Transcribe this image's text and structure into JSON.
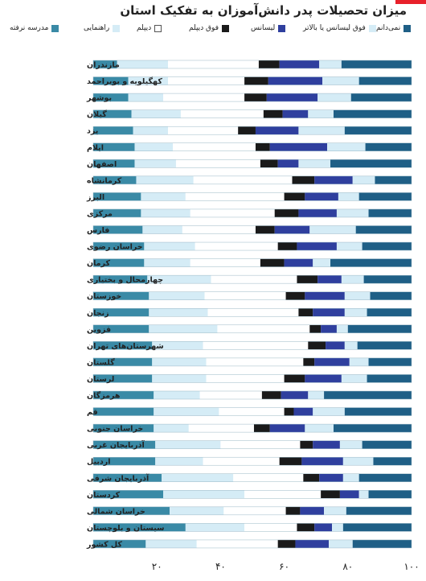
{
  "title": "میزان تحصیلات پدر دانش‌آموزان به تفکیک استان",
  "colors": {
    "accent": "#e8202a",
    "levels": [
      "#1f5f86",
      "#d5ecf6",
      "#2f3f9e",
      "#1a1a1a",
      "#ffffff",
      "#d5ecf6",
      "#3a8aa6"
    ]
  },
  "legend": [
    {
      "label": "نمی‌دانم",
      "color": "#1f5f86"
    },
    {
      "label": "فوق لیسانس یا بالاتر",
      "color": "#d5ecf6"
    },
    {
      "label": "لیسانس",
      "color": "#2f3f9e"
    },
    {
      "label": "فوق دیپلم",
      "color": "#1a1a1a"
    },
    {
      "label": "دیپلم",
      "color": "#ffffff"
    },
    {
      "label": "راهنمایی",
      "color": "#d5ecf6"
    },
    {
      "label": "مدرسه نرفته",
      "color": "#3a8aa6"
    }
  ],
  "chart_data": {
    "type": "bar",
    "orientation": "horizontal",
    "stacked": true,
    "title": "میزان تحصیلات پدر دانش‌آموزان به تفکیک استان",
    "xlim": [
      0,
      100
    ],
    "xticks": [
      "۲۰",
      "۴۰",
      "۶۰",
      "۸۰",
      "۱۰۰"
    ],
    "tick_values": [
      20,
      40,
      60,
      80,
      100
    ],
    "grid": false,
    "legend_position": "top",
    "series_order": [
      "مدرسه نرفته",
      "راهنمایی",
      "دیپلم",
      "فوق دیپلم",
      "لیسانس",
      "فوق لیسانس یا بالاتر",
      "نمی‌دانم"
    ],
    "rows": [
      {
        "name": "مازندران",
        "values": [
          7.5,
          16,
          28.5,
          6.5,
          12.5,
          7,
          22
        ]
      },
      {
        "name": "کهگیلویه و بویراحمد",
        "values": [
          11,
          12.5,
          24,
          7.5,
          17,
          11.5,
          16.5
        ]
      },
      {
        "name": "بوشهر",
        "values": [
          11,
          11,
          25.5,
          7,
          16,
          10.5,
          19
        ]
      },
      {
        "name": "گیلان",
        "values": [
          12,
          15.5,
          26,
          6,
          8,
          8,
          24.5
        ]
      },
      {
        "name": "یزد",
        "values": [
          12.5,
          11,
          22,
          5.5,
          13.5,
          14.5,
          21
        ]
      },
      {
        "name": "ایلام",
        "values": [
          13,
          12,
          26,
          4.5,
          18,
          12,
          14.5
        ]
      },
      {
        "name": "اصفهان",
        "values": [
          13,
          13,
          26.5,
          5.5,
          6.5,
          10,
          25.5
        ]
      },
      {
        "name": "کرمانشاه",
        "values": [
          13.5,
          18,
          31,
          7,
          12,
          7,
          11.5
        ]
      },
      {
        "name": "البرز",
        "values": [
          15,
          14,
          31,
          6.5,
          10.5,
          6.5,
          16.5
        ]
      },
      {
        "name": "مرکزی",
        "values": [
          15,
          15.5,
          26.5,
          7.5,
          12,
          10,
          13.5
        ]
      },
      {
        "name": "فارس",
        "values": [
          15.5,
          12.5,
          23,
          6,
          11,
          14.5,
          17.5
        ]
      },
      {
        "name": "خراسان رضوی",
        "values": [
          16,
          16,
          26,
          6,
          12.5,
          8,
          15.5
        ]
      },
      {
        "name": "کرمان",
        "values": [
          16,
          14.5,
          22,
          7.5,
          9,
          5.5,
          25.5
        ]
      },
      {
        "name": "چهارمحال و بختیاری",
        "values": [
          17,
          20,
          27,
          6.5,
          7.5,
          7,
          15
        ]
      },
      {
        "name": "خوزستان",
        "values": [
          17.5,
          17.5,
          25.5,
          6,
          12.5,
          8,
          13
        ]
      },
      {
        "name": "زنجان",
        "values": [
          17.5,
          18.5,
          28.5,
          4.5,
          10,
          7,
          14
        ]
      },
      {
        "name": "قزوین",
        "values": [
          17.5,
          21.5,
          29,
          3.5,
          5,
          3.5,
          20
        ]
      },
      {
        "name": "شهرستان‌های تهران",
        "values": [
          18.5,
          16,
          33,
          5.5,
          6,
          4,
          17
        ]
      },
      {
        "name": "گلستان",
        "values": [
          18.5,
          17,
          30.5,
          3.5,
          11,
          6,
          13.5
        ]
      },
      {
        "name": "لرستان",
        "values": [
          18.5,
          17,
          24.5,
          6.5,
          11.5,
          8,
          14
        ]
      },
      {
        "name": "هرمزگان",
        "values": [
          19,
          14.5,
          19.5,
          6,
          8.5,
          5,
          27.5
        ]
      },
      {
        "name": "قم",
        "values": [
          19,
          20.5,
          20.5,
          3,
          6,
          10,
          21
        ]
      },
      {
        "name": "خراسان جنوبی",
        "values": [
          19,
          11,
          20.5,
          5,
          11,
          9,
          24.5
        ]
      },
      {
        "name": "آذربایجان غربی",
        "values": [
          19.5,
          20.5,
          25,
          4,
          8.5,
          7,
          15.5
        ]
      },
      {
        "name": "اردبیل",
        "values": [
          19.5,
          15,
          24,
          7,
          13,
          9.5,
          12
        ]
      },
      {
        "name": "آذربایجان شرقی",
        "values": [
          21.5,
          22.5,
          22,
          5,
          7.5,
          5,
          16.5
        ]
      },
      {
        "name": "کردستان",
        "values": [
          22,
          25.5,
          24,
          6,
          6,
          3,
          13.5
        ]
      },
      {
        "name": "خراسان شمالی",
        "values": [
          24,
          17,
          19.5,
          4.5,
          7.5,
          7,
          20.5
        ]
      },
      {
        "name": "سیستان و بلوچستان",
        "values": [
          29,
          18.5,
          16.5,
          5.5,
          5.5,
          3.5,
          21.5
        ]
      },
      {
        "name": "کل کشور",
        "values": [
          16.5,
          16,
          25.5,
          5.5,
          10.5,
          7.5,
          18.5
        ]
      }
    ]
  }
}
